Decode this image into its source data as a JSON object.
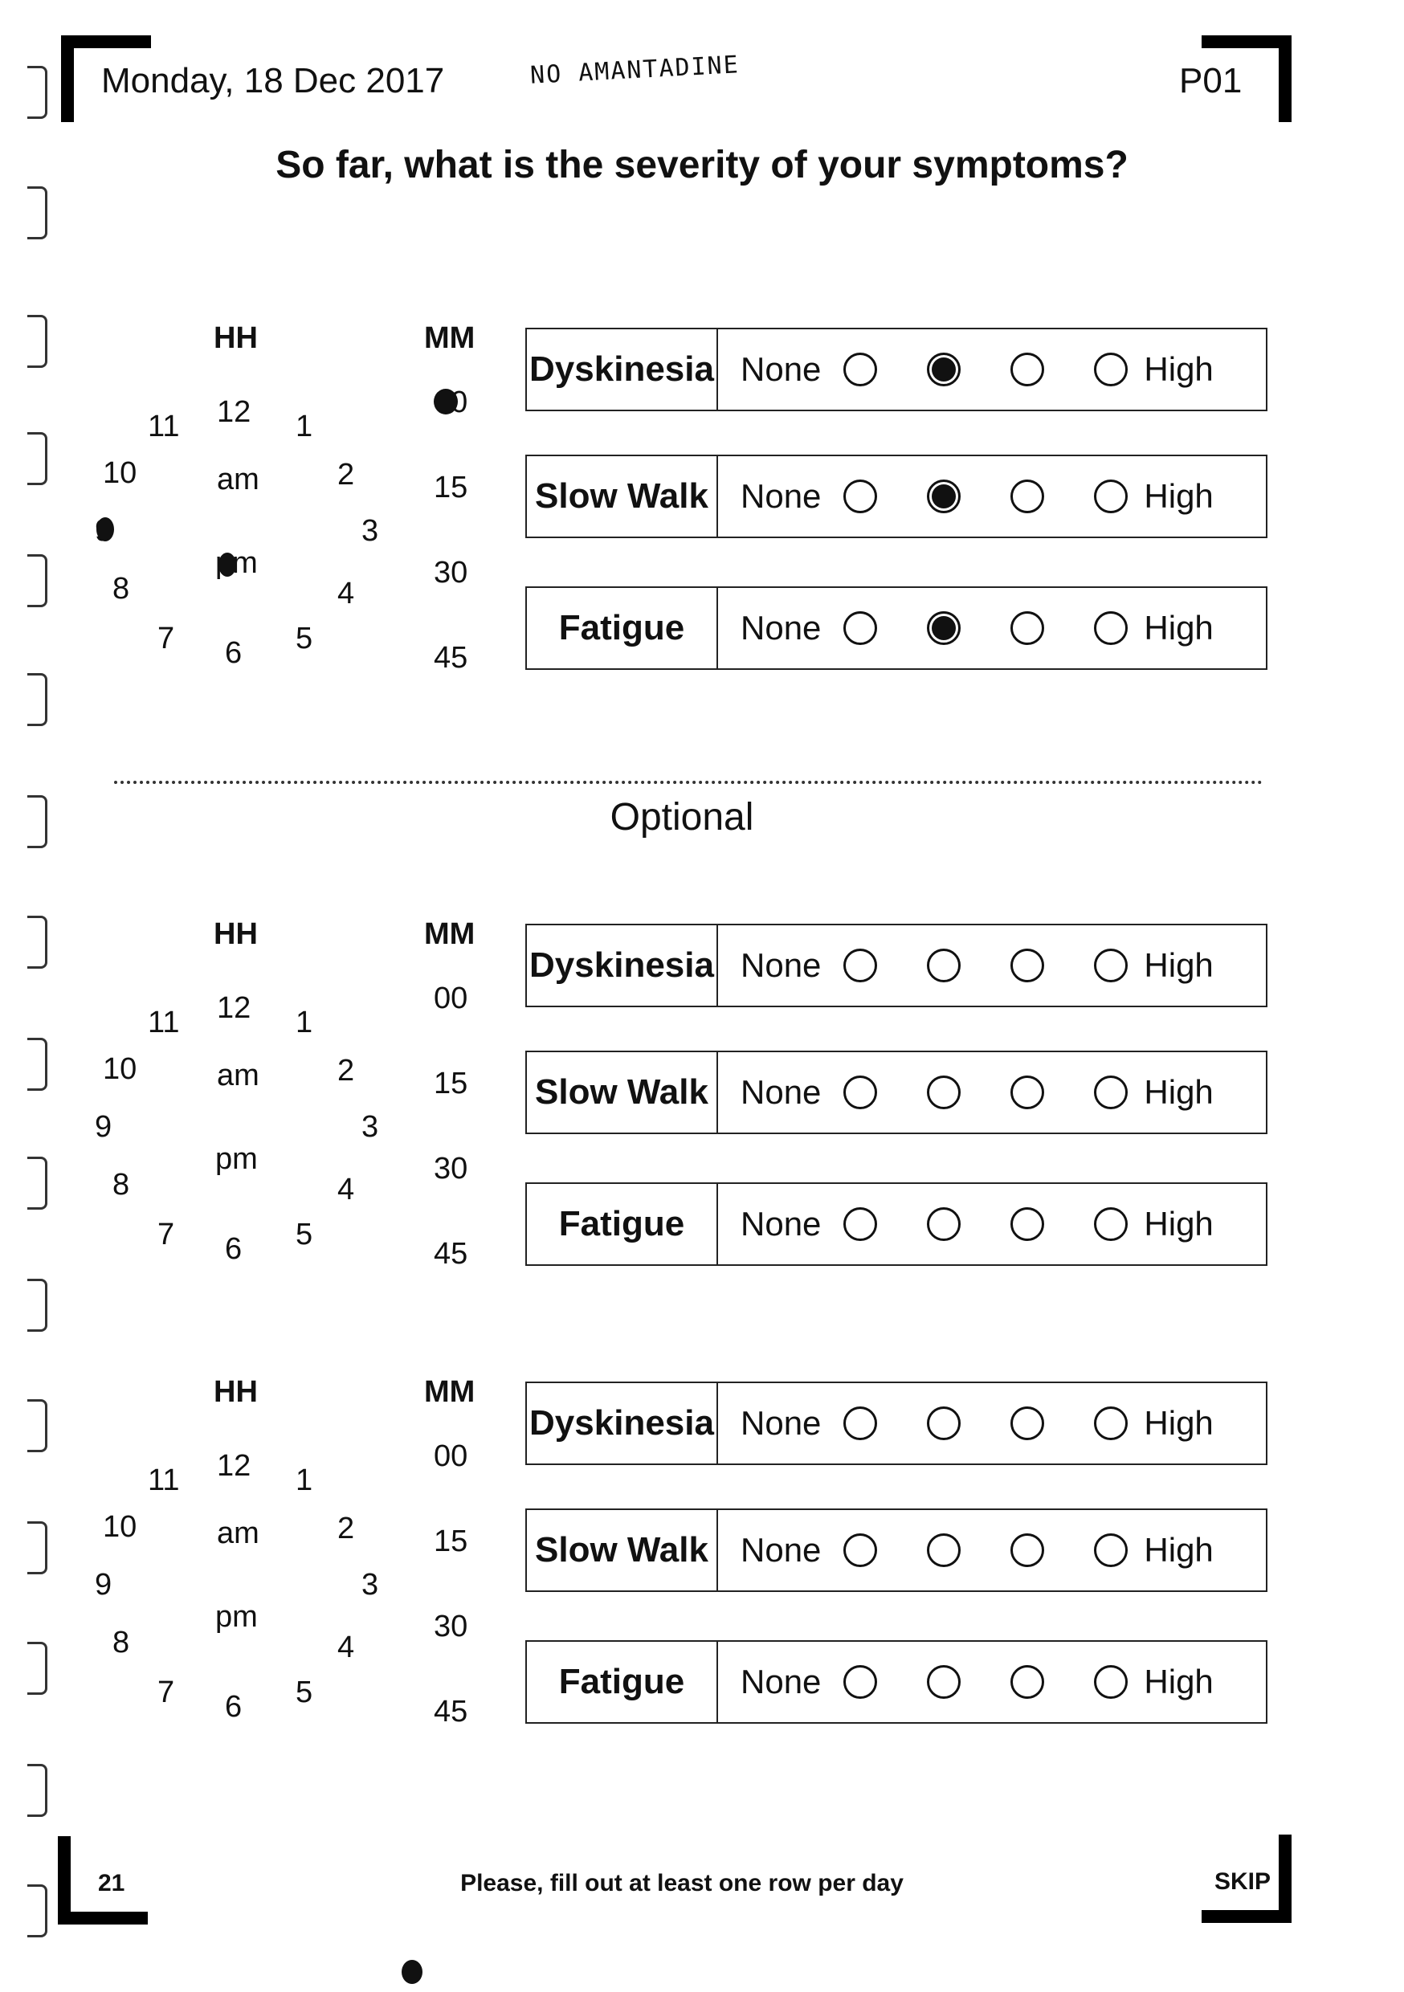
{
  "header": {
    "date": "Monday, 18 Dec 2017",
    "handwritten_note": "NO AMANTADINE",
    "participant_id": "P01"
  },
  "title": "So far, what is the severity of your symptoms?",
  "optional_label": "Optional",
  "clock": {
    "hh_label": "HH",
    "mm_label": "MM",
    "am": "am",
    "pm": "pm",
    "hours": [
      "12",
      "1",
      "2",
      "3",
      "4",
      "5",
      "6",
      "7",
      "8",
      "9",
      "10",
      "11"
    ],
    "minutes": [
      "00",
      "15",
      "30",
      "45"
    ]
  },
  "scale": {
    "low": "None",
    "high": "High",
    "points": 4
  },
  "sections": [
    {
      "id": "main",
      "marked_hour": "9",
      "marked_ampm": "pm",
      "marked_minute": "00",
      "rows": [
        {
          "label": "Dyskinesia",
          "selected": 2
        },
        {
          "label": "Slow Walk",
          "selected": 2
        },
        {
          "label": "Fatigue",
          "selected": 2
        }
      ]
    },
    {
      "id": "optional-1",
      "rows": [
        {
          "label": "Dyskinesia",
          "selected": 0
        },
        {
          "label": "Slow Walk",
          "selected": 0
        },
        {
          "label": "Fatigue",
          "selected": 0
        }
      ]
    },
    {
      "id": "optional-2",
      "rows": [
        {
          "label": "Dyskinesia",
          "selected": 0
        },
        {
          "label": "Slow Walk",
          "selected": 0
        },
        {
          "label": "Fatigue",
          "selected": 0
        }
      ]
    }
  ],
  "footer": {
    "page_number": "21",
    "message": "Please, fill out at least one row per day",
    "skip_label": "SKIP"
  }
}
